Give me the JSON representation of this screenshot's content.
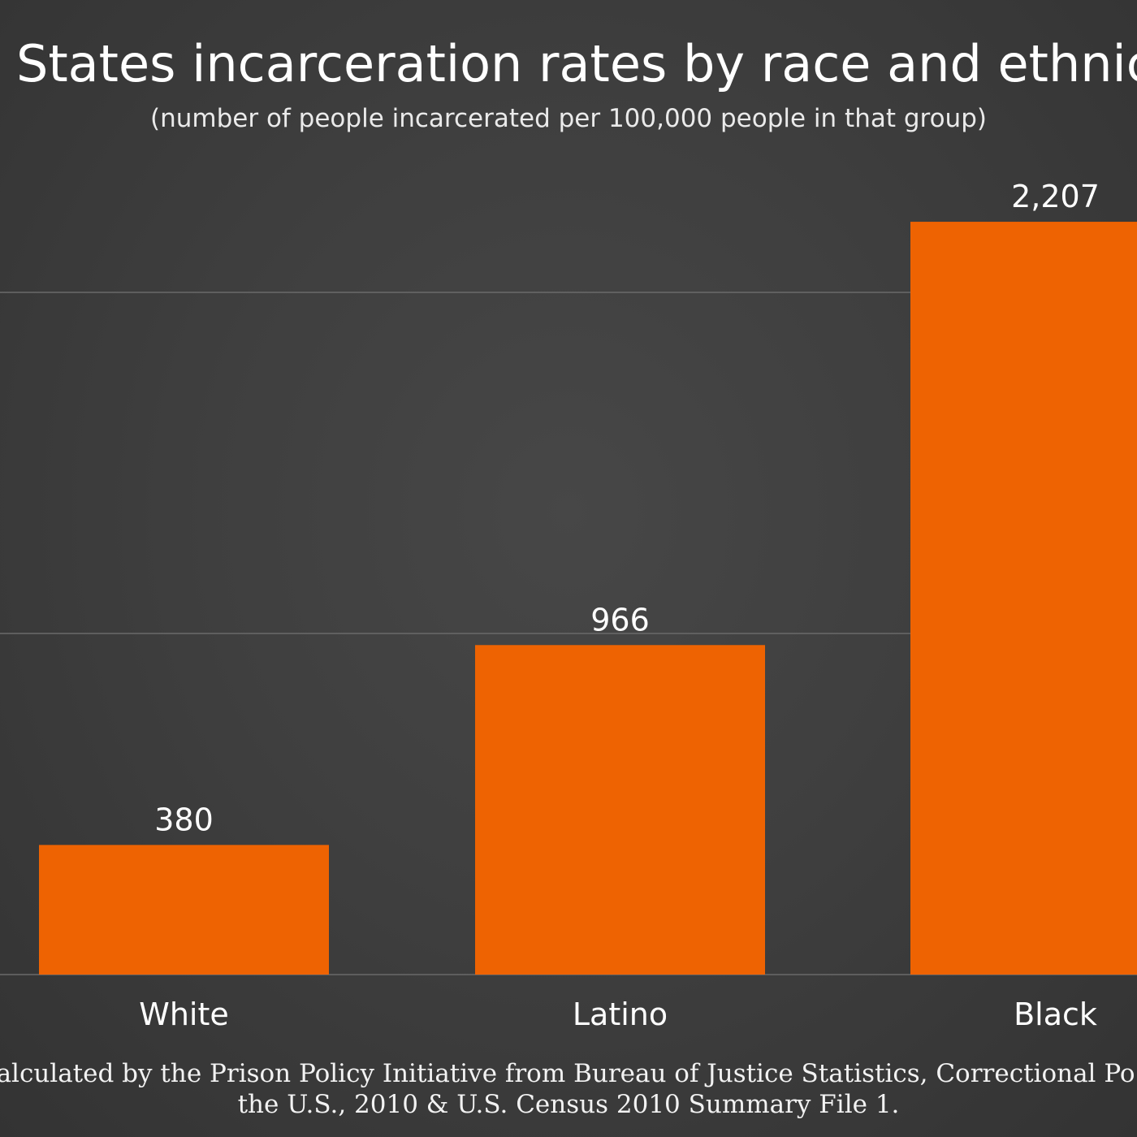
{
  "chart_data": {
    "type": "bar",
    "title": "States incarceration rates by race and ethnicity",
    "subtitle": "(number of people incarcerated per 100,000 people in that group)",
    "categories": [
      "White",
      "Latino",
      "Black"
    ],
    "values": [
      380,
      966,
      2207
    ],
    "value_labels": [
      "380",
      "966",
      "2,207"
    ],
    "ylim": [
      0,
      2400
    ],
    "gridlines": [
      1000,
      2000
    ],
    "grid": true,
    "legend": "none",
    "bar_color": "#ee6302",
    "gridline_color": "#6a6a6a",
    "background_color": "#3f3f3f",
    "text_color": "#ffffff"
  },
  "source": {
    "line1": "ource: Calculated by the Prison Policy Initiative from Bureau of Justice Statistics, Correctional Po",
    "line2": "the U.S., 2010 & U.S. Census 2010 Summary File 1."
  }
}
